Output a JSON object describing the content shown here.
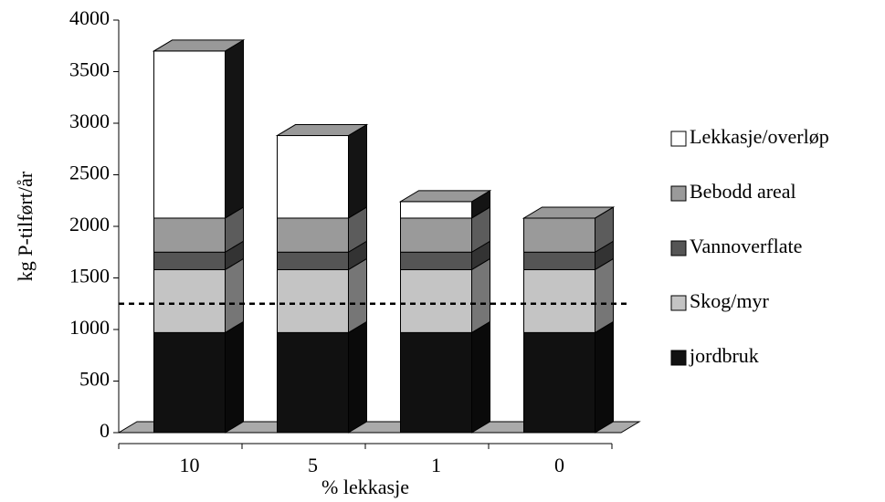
{
  "chart_data": {
    "type": "stacked_bar_3d",
    "x_label": "% lekkasje",
    "y_label": "kg P-tilført/år",
    "categories": [
      "10",
      "5",
      "1",
      "0"
    ],
    "series": [
      {
        "name": "jordbruk",
        "color": "#111111",
        "values": [
          970,
          970,
          970,
          970
        ]
      },
      {
        "name": "Skog/myr",
        "color": "#c4c4c4",
        "values": [
          610,
          610,
          610,
          610
        ]
      },
      {
        "name": "Vannoverflate",
        "color": "#555555",
        "values": [
          170,
          170,
          170,
          170
        ]
      },
      {
        "name": "Bebodd areal",
        "color": "#9a9a9a",
        "values": [
          330,
          330,
          330,
          330
        ]
      },
      {
        "name": "Lekkasje/overløp",
        "color": "#ffffff",
        "values": [
          1620,
          800,
          160,
          0
        ]
      }
    ],
    "reference_line": 1250,
    "ylim": [
      0,
      4000
    ],
    "yticks": [
      0,
      500,
      1000,
      1500,
      2000,
      2500,
      3000,
      3500,
      4000
    ]
  }
}
